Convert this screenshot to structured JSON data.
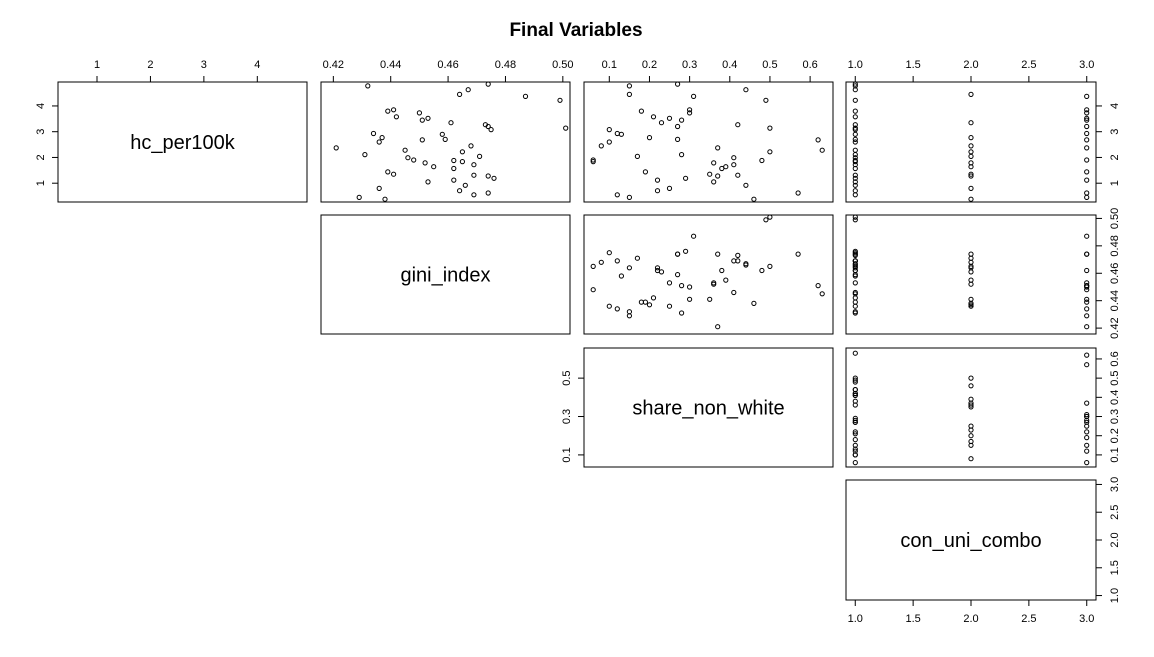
{
  "chart_data": {
    "type": "scatter",
    "title": "Final Variables",
    "variables": [
      {
        "name": "hc_per100k",
        "range": [
          0.27,
          4.93
        ],
        "ticks": [
          1,
          2,
          3,
          4
        ],
        "tick_labels": [
          "1",
          "2",
          "3",
          "4"
        ]
      },
      {
        "name": "gini_index",
        "range": [
          0.4157,
          0.5025
        ],
        "ticks": [
          0.42,
          0.44,
          0.46,
          0.48,
          0.5
        ],
        "tick_labels": [
          "0.42",
          "0.44",
          "0.46",
          "0.48",
          "0.50"
        ]
      },
      {
        "name": "share_non_white",
        "range": [
          0.037,
          0.657
        ],
        "ticks": [
          0.1,
          0.2,
          0.3,
          0.4,
          0.5,
          0.6
        ],
        "tick_labels": [
          "0.1",
          "0.2",
          "0.3",
          "0.4",
          "0.5",
          "0.6"
        ],
        "left_tick_labels": [
          "0.1",
          "0.3",
          "0.5"
        ]
      },
      {
        "name": "con_uni_combo",
        "range": [
          0.92,
          3.08
        ],
        "ticks": [
          1.0,
          1.5,
          2.0,
          2.5,
          3.0
        ],
        "tick_labels": [
          "1.0",
          "1.5",
          "2.0",
          "2.5",
          "3.0"
        ]
      }
    ],
    "observations": {
      "hc_per100k": [
        4.85,
        4.78,
        4.63,
        4.45,
        4.37,
        4.22,
        3.85,
        3.8,
        3.73,
        3.58,
        3.52,
        3.45,
        3.35,
        3.27,
        3.2,
        3.14,
        3.08,
        2.93,
        2.9,
        2.77,
        2.7,
        2.68,
        2.6,
        2.45,
        2.37,
        2.28,
        2.22,
        2.11,
        2.04,
        1.99,
        1.9,
        1.88,
        1.84,
        1.79,
        1.72,
        1.64,
        1.57,
        1.44,
        1.35,
        1.31,
        1.28,
        1.19,
        1.12,
        1.05,
        0.92,
        0.8,
        0.71,
        0.62,
        0.55,
        0.45,
        0.38
      ],
      "gini_index": [
        0.474,
        0.432,
        0.467,
        0.464,
        0.487,
        0.499,
        0.441,
        0.439,
        0.45,
        0.442,
        0.453,
        0.451,
        0.461,
        0.473,
        0.474,
        0.501,
        0.475,
        0.434,
        0.458,
        0.437,
        0.459,
        0.451,
        0.436,
        0.468,
        0.421,
        0.445,
        0.465,
        0.431,
        0.471,
        0.446,
        0.448,
        0.462,
        0.465,
        0.452,
        0.469,
        0.455,
        0.462,
        0.439,
        0.441,
        0.469,
        0.474,
        0.476,
        0.462,
        0.453,
        0.466,
        0.436,
        0.464,
        0.474,
        0.469,
        0.429,
        0.438
      ],
      "share_non_white": [
        0.27,
        0.15,
        0.44,
        0.15,
        0.31,
        0.49,
        0.3,
        0.18,
        0.3,
        0.21,
        0.25,
        0.28,
        0.23,
        0.42,
        0.27,
        0.5,
        0.1,
        0.12,
        0.13,
        0.2,
        0.27,
        0.62,
        0.1,
        0.08,
        0.37,
        0.63,
        0.5,
        0.28,
        0.17,
        0.41,
        0.06,
        0.48,
        0.06,
        0.36,
        0.41,
        0.39,
        0.38,
        0.19,
        0.35,
        0.42,
        0.37,
        0.29,
        0.22,
        0.36,
        0.44,
        0.25,
        0.22,
        0.57,
        0.12,
        0.15,
        0.46
      ],
      "con_uni_combo": [
        1,
        1,
        1,
        2,
        3,
        1,
        3,
        1,
        3,
        1,
        3,
        3,
        2,
        1,
        3,
        1,
        1,
        3,
        1,
        2,
        1,
        3,
        1,
        2,
        3,
        1,
        2,
        1,
        2,
        1,
        3,
        1,
        1,
        2,
        1,
        2,
        1,
        3,
        2,
        1,
        2,
        1,
        3,
        1,
        1,
        2,
        1,
        3,
        1,
        3,
        2
      ]
    }
  }
}
